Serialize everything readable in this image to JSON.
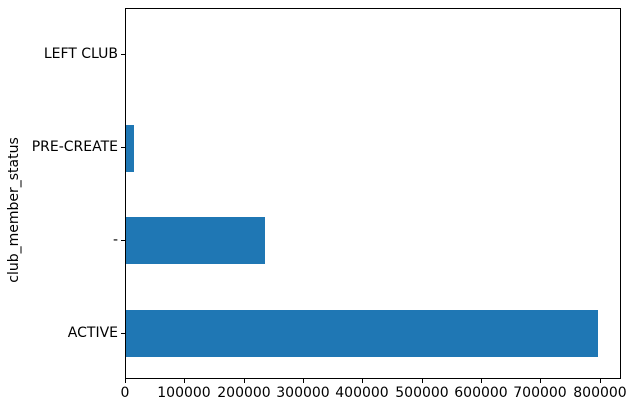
{
  "chart_data": {
    "type": "bar",
    "orientation": "horizontal",
    "title": "",
    "xlabel": "",
    "ylabel": "club_member_status",
    "categories_top_to_bottom": [
      "LEFT CLUB",
      "PRE-CREATE",
      "-",
      "ACTIVE"
    ],
    "values_top_to_bottom": [
      0,
      14000,
      235000,
      795000
    ],
    "xlim": [
      0,
      836000
    ],
    "x_ticks": [
      0,
      100000,
      200000,
      300000,
      400000,
      500000,
      600000,
      700000,
      800000
    ],
    "x_tick_labels": [
      "0",
      "100000",
      "200000",
      "300000",
      "400000",
      "500000",
      "600000",
      "700000",
      "800000"
    ],
    "bar_color": "#1f77b4",
    "spine_color": "#000000",
    "grid": false,
    "legend": null
  }
}
